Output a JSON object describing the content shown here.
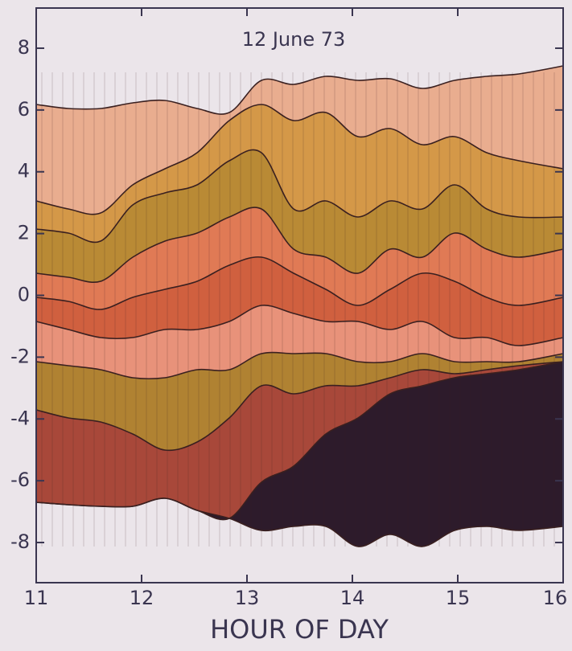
{
  "chart_data": {
    "type": "contour",
    "title": "12 June 73",
    "x_label": "HOUR OF DAY",
    "xlim": [
      11,
      16
    ],
    "xticks": [
      11,
      12,
      13,
      14,
      15,
      16
    ],
    "ylim": [
      -9.3,
      9.3
    ],
    "yticks": [
      -8,
      -6,
      -4,
      -2,
      0,
      2,
      4,
      6,
      8
    ]
  }
}
